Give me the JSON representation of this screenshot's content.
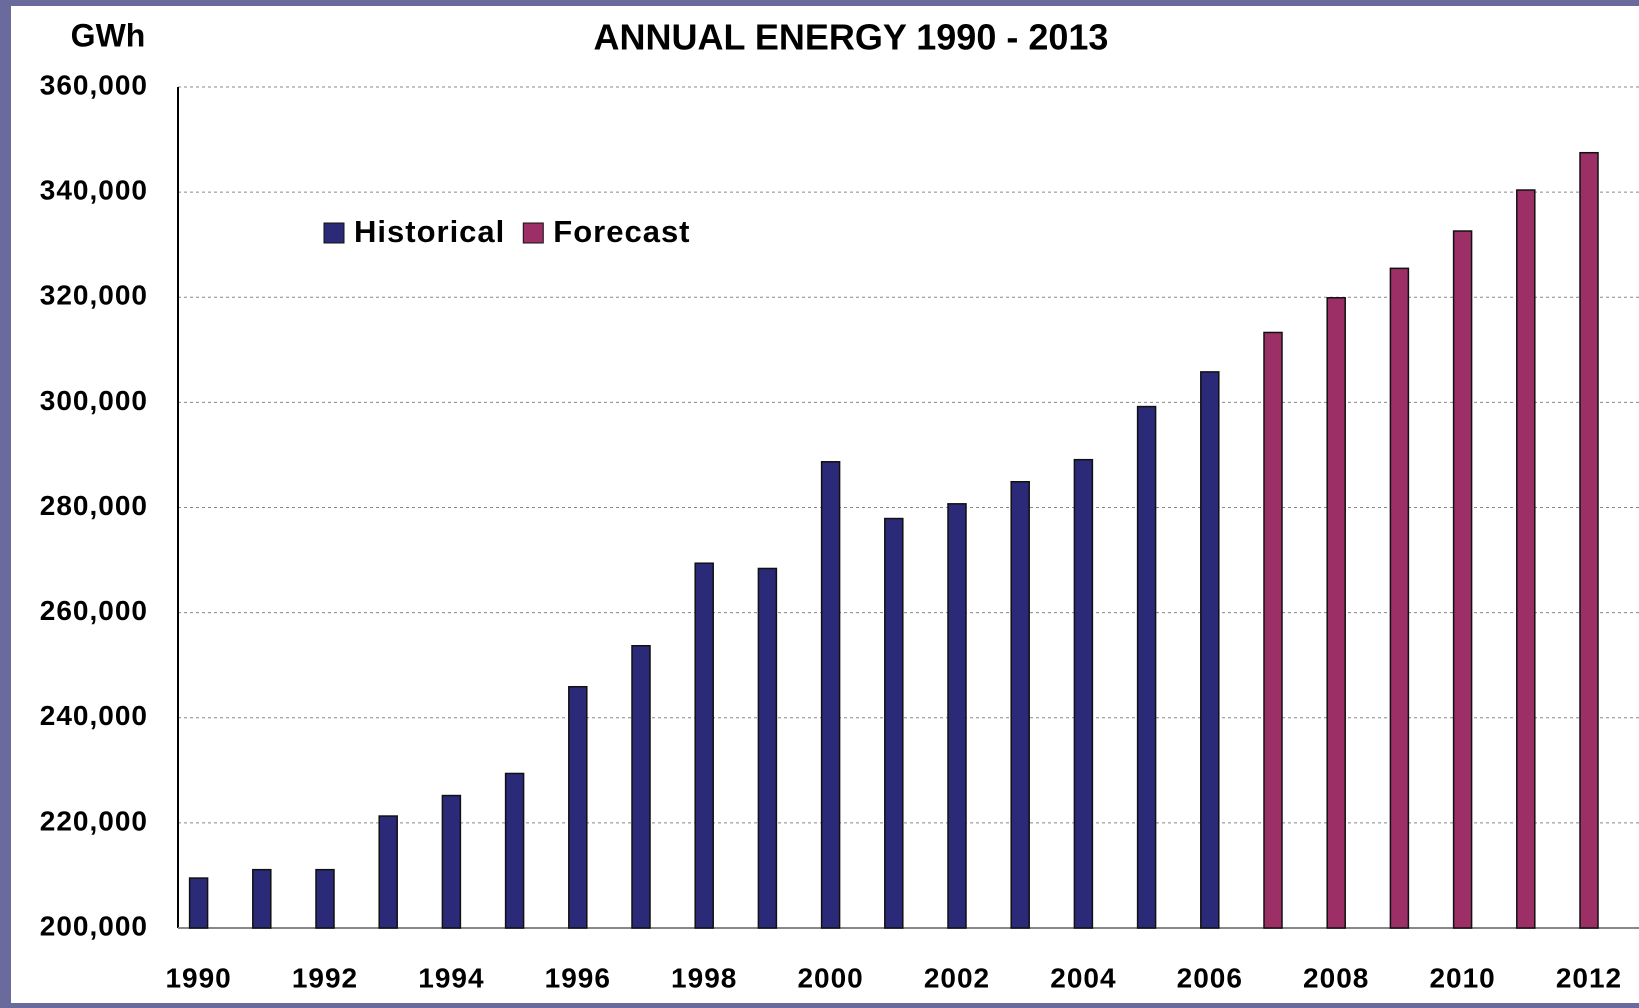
{
  "chart_data": {
    "type": "bar",
    "title": "ANNUAL ENERGY 1990 - 2013",
    "y_label": "GWh",
    "categories": [
      "1990",
      null,
      "1992",
      null,
      "1994",
      null,
      "1996",
      null,
      "1998",
      null,
      "2000",
      null,
      "2002",
      null,
      "2004",
      null,
      "2006",
      null,
      "2008",
      null,
      "2010",
      null,
      "2012"
    ],
    "series": [
      {
        "name": "Historical",
        "color": "#2b2a78",
        "values": [
          209500,
          211100,
          211100,
          221300,
          225200,
          229400,
          245900,
          253700,
          269400,
          268400,
          288700,
          277900,
          280700,
          284900,
          289100,
          299200,
          305800,
          null,
          null,
          null,
          null,
          null,
          null
        ]
      },
      {
        "name": "Forecast",
        "color": "#9b2f66",
        "values": [
          null,
          null,
          null,
          null,
          null,
          null,
          null,
          null,
          null,
          null,
          null,
          null,
          null,
          null,
          null,
          null,
          null,
          313300,
          319900,
          325500,
          332600,
          340400,
          347500
        ]
      }
    ],
    "ylim": [
      200000,
      360000
    ],
    "yticks": [
      {
        "value": 200000,
        "label": "200,000"
      },
      {
        "value": 220000,
        "label": "220,000"
      },
      {
        "value": 240000,
        "label": "240,000"
      },
      {
        "value": 260000,
        "label": "260,000"
      },
      {
        "value": 280000,
        "label": "280,000"
      },
      {
        "value": 300000,
        "label": "300,000"
      },
      {
        "value": 320000,
        "label": "320,000"
      },
      {
        "value": 340000,
        "label": "340,000"
      },
      {
        "value": 360000,
        "label": "360,000"
      }
    ],
    "grid": true,
    "legend": "top-left"
  }
}
